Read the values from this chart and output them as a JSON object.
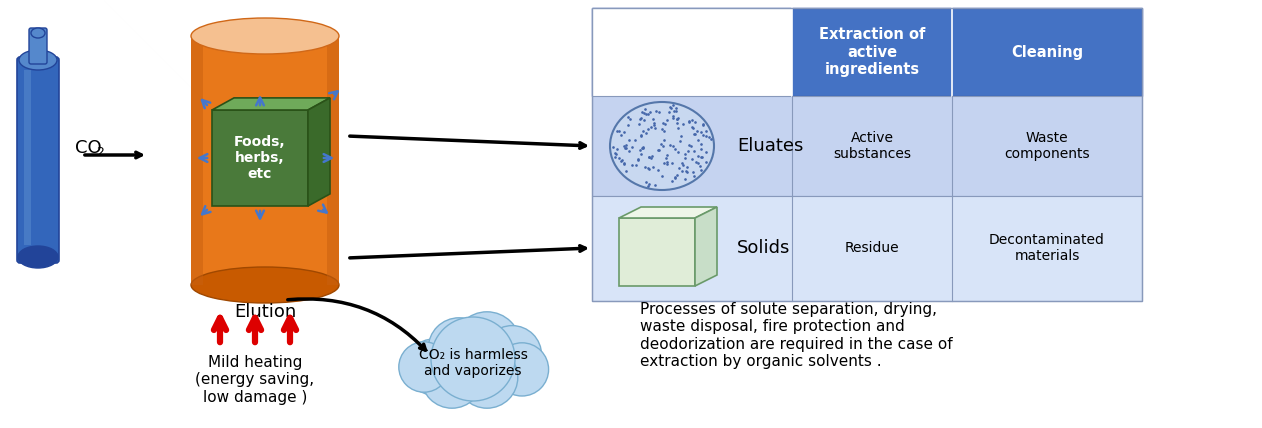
{
  "bg_color": "#ffffff",
  "cylinder_color_body": "#E8781A",
  "cylinder_color_top": "#F5C090",
  "cylinder_color_bottom": "#C85A00",
  "cube_color_front": "#4A7A3A",
  "cube_color_top": "#6FAA5A",
  "cube_color_right": "#3A6A2A",
  "cube_text": "Foods,\nherbs,\netc",
  "elution_text": "Elution",
  "co2_label_main": "CO",
  "co2_label_sub": "2",
  "table_header_color": "#4472C4",
  "table_row1_color": "#C5D3F0",
  "table_row2_color": "#D8E4F8",
  "table_header_text_color": "#ffffff",
  "table_col1": "Extraction of\nactive\ningredients",
  "table_col2": "Cleaning",
  "row1_label": "Eluates",
  "row1_col1": "Active\nsubstances",
  "row1_col2": "Waste\ncomponents",
  "row2_label": "Solids",
  "row2_col1": "Residue",
  "row2_col2": "Decontaminated\nmaterials",
  "cloud_text": "CO₂ is harmless\nand vaporizes",
  "cloud_color": "#BDD9F0",
  "cloud_outline": "#7AAFD0",
  "process_text": "Processes of solute separation, drying,\nwaste disposal, fire protection and\ndeodorization are required in the case of\nextraction by organic solvents .",
  "heating_text": "Mild heating\n(energy saving,\nlow damage )",
  "arrow_color": "#000000",
  "red_arrow_color": "#DD0000",
  "blue_arrow_color": "#4477CC",
  "bottle_color": "#3366BB",
  "bottle_dark": "#224499",
  "bottle_light": "#5588CC",
  "ellipse_fill": "#C8D8F0",
  "ellipse_outline": "#5577AA",
  "dot_color": "#4466AA"
}
